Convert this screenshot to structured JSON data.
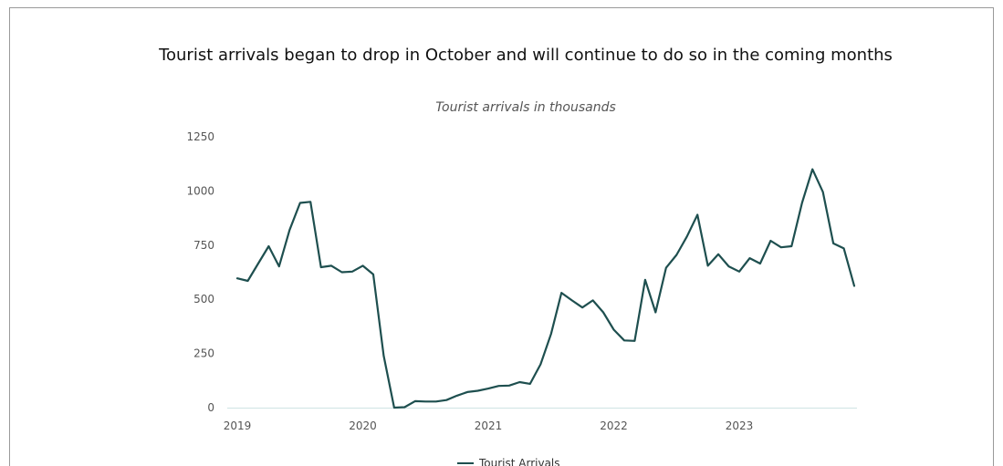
{
  "chart_data": {
    "type": "line",
    "title": "Tourist arrivals began to drop in October and will continue to do so in the coming months",
    "subtitle": "Tourist arrivals in thousands",
    "xlabel": "",
    "ylabel": "",
    "ylim": [
      0,
      1250
    ],
    "y_ticks": [
      0,
      250,
      500,
      750,
      1000,
      1250
    ],
    "y_tick_labels": [
      "0",
      "250",
      "500",
      "750",
      "1000",
      "1250"
    ],
    "x_ticks": [
      "2019",
      "2020",
      "2021",
      "2022",
      "2023"
    ],
    "xlim": [
      2019,
      2023.917
    ],
    "grid": false,
    "legend_placement": "bottom",
    "line_color": "#1e4f4f",
    "series": [
      {
        "name": "Tourist Arrivals",
        "start": "2019-01",
        "frequency": "monthly",
        "values": [
          597,
          585,
          665,
          745,
          652,
          820,
          945,
          950,
          648,
          655,
          625,
          628,
          655,
          615,
          240,
          0,
          2,
          30,
          28,
          28,
          35,
          55,
          72,
          78,
          88,
          100,
          102,
          118,
          110,
          200,
          340,
          530,
          495,
          462,
          495,
          440,
          360,
          310,
          308,
          590,
          440,
          645,
          705,
          790,
          890,
          655,
          708,
          652,
          628,
          690,
          665,
          770,
          740,
          745,
          945,
          1100,
          995,
          758,
          735,
          562
        ]
      }
    ]
  }
}
